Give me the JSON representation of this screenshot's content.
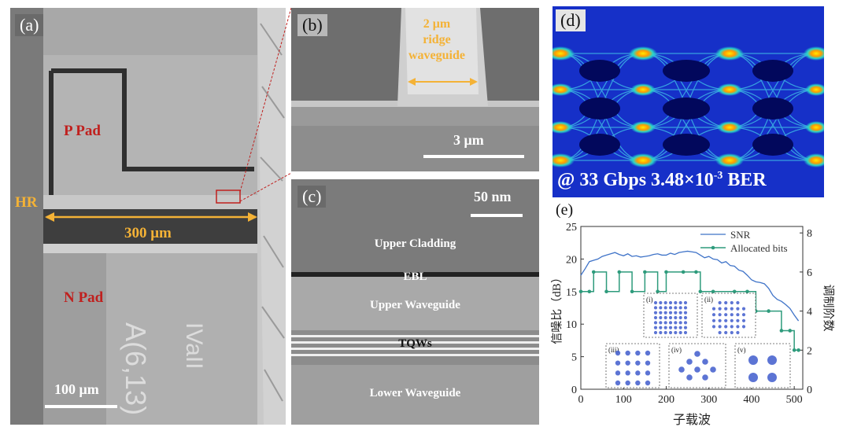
{
  "panel_a": {
    "label": "(a)",
    "p_pad": "P Pad",
    "n_pad": "N Pad",
    "hr": "HR",
    "width_label": "300 μm",
    "scale": "100 μm",
    "engraving_1": "A(6,13)",
    "engraving_2": "IVaII"
  },
  "panel_b": {
    "label": "(b)",
    "ridge_l1": "2 μm",
    "ridge_l2": "ridge",
    "ridge_l3": "waveguide",
    "scale": "3 μm"
  },
  "panel_c": {
    "label": "(c)",
    "scale": "50 nm",
    "layers": {
      "upper_cladding": "Upper Cladding",
      "ebl": "EBL",
      "upper_waveguide": "Upper Waveguide",
      "tqws": "TQWs",
      "lower_waveguide": "Lower Waveguide"
    }
  },
  "panel_d": {
    "label": "(d)",
    "caption_prefix": "@ 33 Gbps 3.48×10",
    "caption_exp": "-3",
    "caption_suffix": " BER"
  },
  "panel_e": {
    "label": "(e)",
    "xlabel": "子载波",
    "ylabel_left": "信噪比（dB）",
    "ylabel_right": "调制阶数",
    "legend_snr": "SNR",
    "legend_bits": "Allocated bits",
    "insets": [
      "(i)",
      "(ii)",
      "(iii)",
      "(iv)",
      "(v)"
    ]
  },
  "chart_data": {
    "type": "line",
    "xlabel": "子载波",
    "ylabel": "信噪比（dB）",
    "ylabel_right": "调制阶数",
    "xlim": [
      0,
      520
    ],
    "ylim": [
      0,
      25
    ],
    "ylim_right": [
      0,
      8.33
    ],
    "xticks": [
      0,
      100,
      200,
      300,
      400,
      500
    ],
    "yticks": [
      0,
      5,
      10,
      15,
      20,
      25
    ],
    "yticks_right": [
      0,
      2,
      4,
      6,
      8
    ],
    "legend_position": "top-right",
    "series": [
      {
        "name": "SNR",
        "axis": "left",
        "color": "#3f73c8",
        "x": [
          0,
          10,
          20,
          30,
          40,
          50,
          60,
          70,
          80,
          90,
          100,
          110,
          120,
          130,
          140,
          150,
          160,
          170,
          180,
          190,
          200,
          210,
          220,
          230,
          240,
          250,
          260,
          270,
          280,
          290,
          300,
          310,
          320,
          330,
          340,
          350,
          360,
          370,
          380,
          390,
          400,
          410,
          420,
          430,
          440,
          450,
          460,
          470,
          480,
          490,
          500,
          510
        ],
        "y": [
          17.5,
          18.5,
          19.6,
          19.8,
          20.0,
          20.4,
          20.6,
          20.8,
          21.0,
          20.7,
          20.5,
          20.8,
          20.4,
          20.5,
          20.3,
          20.4,
          20.5,
          20.7,
          20.8,
          20.6,
          20.6,
          20.9,
          20.7,
          21.0,
          21.1,
          21.2,
          21.1,
          21.0,
          20.6,
          20.2,
          20.4,
          20.0,
          19.9,
          19.4,
          19.6,
          19.0,
          18.9,
          18.3,
          18.1,
          17.5,
          16.8,
          16.5,
          16.4,
          16.2,
          15.5,
          14.4,
          13.8,
          13.5,
          13.0,
          12.4,
          11.4,
          10.5
        ]
      },
      {
        "name": "Allocated bits",
        "axis": "right",
        "color": "#2e9b7c",
        "x": [
          0,
          20,
          30,
          60,
          90,
          120,
          150,
          180,
          200,
          240,
          270,
          280,
          310,
          360,
          390,
          410,
          440,
          470,
          490,
          500,
          510
        ],
        "y": [
          5,
          5,
          6,
          5,
          6,
          5,
          6,
          5,
          6,
          6,
          6,
          5,
          5,
          5,
          5,
          4,
          4,
          3,
          3,
          2,
          2
        ]
      }
    ]
  }
}
